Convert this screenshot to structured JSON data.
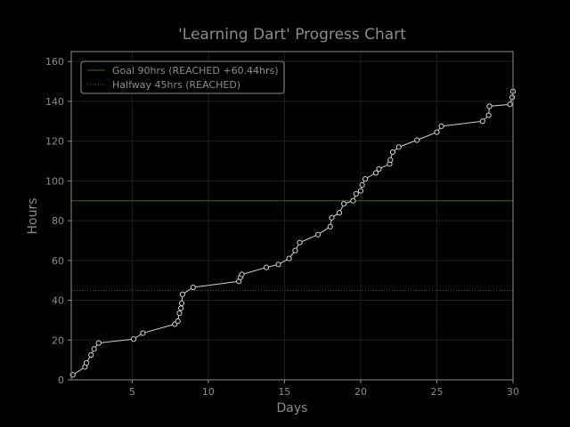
{
  "chart_data": {
    "type": "line",
    "title": "'Learning Dart' Progress Chart",
    "xlabel": "Days",
    "ylabel": "Hours",
    "xlim": [
      1,
      30
    ],
    "ylim": [
      0,
      165
    ],
    "xticks": [
      5,
      10,
      15,
      20,
      25,
      30
    ],
    "yticks": [
      0,
      20,
      40,
      60,
      80,
      100,
      120,
      140,
      160
    ],
    "grid": true,
    "legend_position": "top-left",
    "colors": {
      "background": "#000000",
      "axes": "#8c8c8c",
      "grid": "#1e1e1e",
      "text": "#8c8c8c",
      "series": "#d0d0d0",
      "goal": "#1f7a1f",
      "halfway": "#1f7a1f"
    },
    "series": [
      {
        "x": [
          1.1,
          1.9,
          2.0,
          2.3,
          2.5,
          2.8,
          5.1,
          5.7,
          7.8,
          8.0,
          8.1,
          8.2,
          8.25,
          8.3,
          9.0,
          12.0,
          12.1,
          12.2,
          13.8,
          14.6,
          15.3,
          15.7,
          16.0,
          17.2,
          18.0,
          18.1,
          18.6,
          18.9,
          19.5,
          19.7,
          20.0,
          20.1,
          20.3,
          21.0,
          21.2,
          21.9,
          21.95,
          22.1,
          22.5,
          23.7,
          25.0,
          25.3,
          28.0,
          28.4,
          28.45,
          29.8,
          29.95,
          30.0
        ],
        "y": [
          2.5,
          6.5,
          8.5,
          12.5,
          15.5,
          18.5,
          20.5,
          23.5,
          28,
          29.5,
          33.5,
          36,
          38.5,
          43,
          46.5,
          49.5,
          51.5,
          53,
          56.5,
          58,
          61,
          65,
          69,
          73,
          77,
          81.5,
          84,
          88.5,
          90,
          93.5,
          95,
          98,
          101,
          104,
          106,
          108.5,
          110.5,
          114.5,
          117,
          120.5,
          124.5,
          127.5,
          130,
          133,
          137.5,
          138.5,
          142,
          145
        ]
      }
    ],
    "reference_lines": [
      {
        "label": "Goal 90hrs (REACHED +60.44hrs)",
        "y": 90,
        "style": "solid"
      },
      {
        "label": "Halfway 45hrs (REACHED)",
        "y": 45,
        "style": "dotted"
      }
    ]
  }
}
